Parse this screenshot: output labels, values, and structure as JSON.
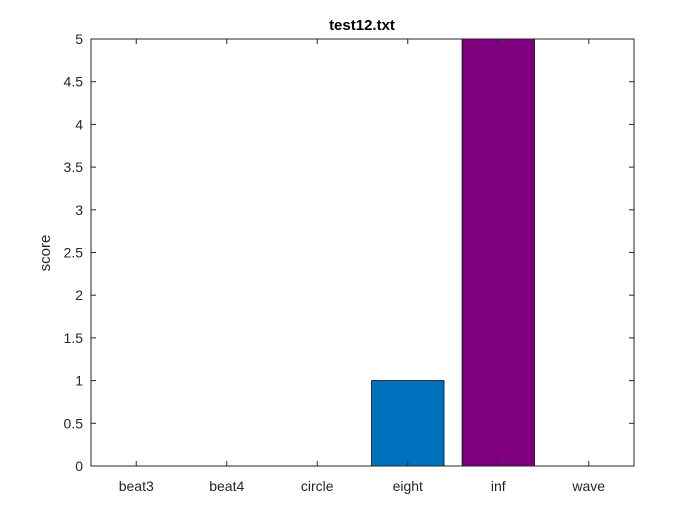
{
  "chart_data": {
    "type": "bar",
    "title": "test12.txt",
    "xlabel": "",
    "ylabel": "score",
    "categories": [
      "beat3",
      "beat4",
      "circle",
      "eight",
      "inf",
      "wave"
    ],
    "values": [
      0,
      0,
      0,
      1,
      5,
      0
    ],
    "bar_colors": [
      "#0072BD",
      "#0072BD",
      "#0072BD",
      "#0072BD",
      "#7E007E",
      "#0072BD"
    ],
    "ylim": [
      0,
      5
    ],
    "yticks": [
      0,
      0.5,
      1,
      1.5,
      2,
      2.5,
      3,
      3.5,
      4,
      4.5,
      5
    ],
    "ytick_labels": [
      "0",
      "0.5",
      "1",
      "1.5",
      "2",
      "2.5",
      "3",
      "3.5",
      "4",
      "4.5",
      "5"
    ],
    "grid": false,
    "legend": "none"
  }
}
